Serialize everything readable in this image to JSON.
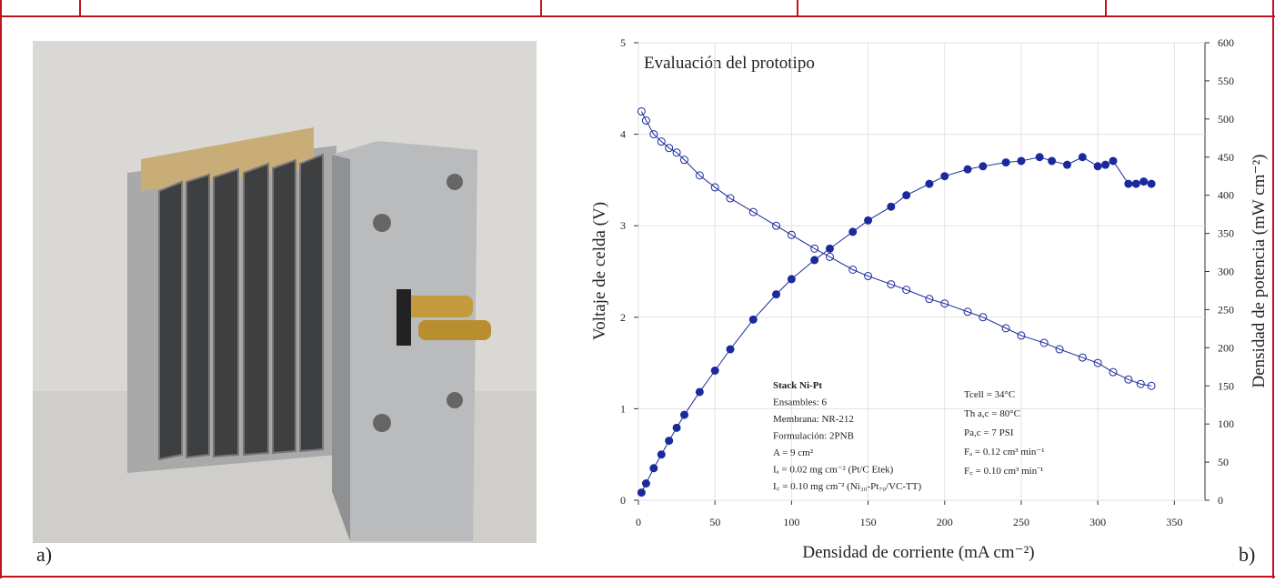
{
  "panel_labels": [
    "a)",
    "b)"
  ],
  "chart_data": {
    "type": "scatter",
    "title": "Evaluación del prototipo",
    "xlabel": "Densidad de corriente (mA cm⁻²)",
    "ylabel": "Voltaje de celda (V)",
    "y2label": "Densidad de potencia (mW cm⁻²)",
    "xlim": [
      0,
      370
    ],
    "xticks": [
      0,
      50,
      100,
      150,
      200,
      250,
      300,
      350
    ],
    "ylim": [
      0,
      5
    ],
    "yticks": [
      0,
      1,
      2,
      3,
      4,
      5
    ],
    "y2lim": [
      0,
      600
    ],
    "y2ticks": [
      0,
      50,
      100,
      150,
      200,
      250,
      300,
      350,
      400,
      450,
      500,
      550,
      600
    ],
    "grid": true,
    "series": [
      {
        "color": "#1a2a9c",
        "marker": "open",
        "axis": "y",
        "x": [
          2,
          5,
          10,
          15,
          20,
          25,
          30,
          40,
          50,
          60,
          75,
          90,
          100,
          115,
          125,
          140,
          150,
          165,
          175,
          190,
          200,
          215,
          225,
          240,
          250,
          265,
          275,
          290,
          300,
          310,
          320,
          328,
          335
        ],
        "values": [
          4.25,
          4.15,
          4.0,
          3.92,
          3.85,
          3.8,
          3.72,
          3.55,
          3.42,
          3.3,
          3.15,
          3.0,
          2.9,
          2.75,
          2.66,
          2.52,
          2.45,
          2.36,
          2.3,
          2.2,
          2.15,
          2.06,
          2.0,
          1.88,
          1.8,
          1.72,
          1.65,
          1.56,
          1.5,
          1.4,
          1.32,
          1.27,
          1.25
        ]
      },
      {
        "color": "#1a2a9c",
        "marker": "filled",
        "axis": "y2",
        "x": [
          2,
          5,
          10,
          15,
          20,
          25,
          30,
          40,
          50,
          60,
          75,
          90,
          100,
          115,
          125,
          140,
          150,
          165,
          175,
          190,
          200,
          215,
          225,
          240,
          250,
          262,
          270,
          280,
          290,
          300,
          305,
          310,
          320,
          325,
          330,
          335
        ],
        "values": [
          10,
          22,
          42,
          60,
          78,
          95,
          112,
          142,
          170,
          198,
          237,
          270,
          290,
          315,
          330,
          352,
          367,
          385,
          400,
          415,
          425,
          434,
          438,
          443,
          445,
          450,
          445,
          440,
          450,
          438,
          440,
          445,
          415,
          415,
          418,
          415
        ]
      }
    ],
    "annotations": [
      [
        "Stack Ni-Pt",
        "Ensambles: 6",
        "Membrana: NR-212",
        "Formulación: 2PNB",
        "A = 9 cm²",
        "Iₐ = 0.02 mg cm⁻² (Pt/C Etek)",
        "I꜀ = 0.10 mg cm⁻² (Ni₃₀-Pt₇₀/VC-TT)"
      ],
      [
        "Tcell = 34°C",
        "Th a,c = 80°C",
        "Pa,c = 7 PSI",
        "Fₐ = 0.12 cm³ min⁻¹",
        "F꜀ = 0.10 cm³ min⁻¹"
      ]
    ]
  }
}
